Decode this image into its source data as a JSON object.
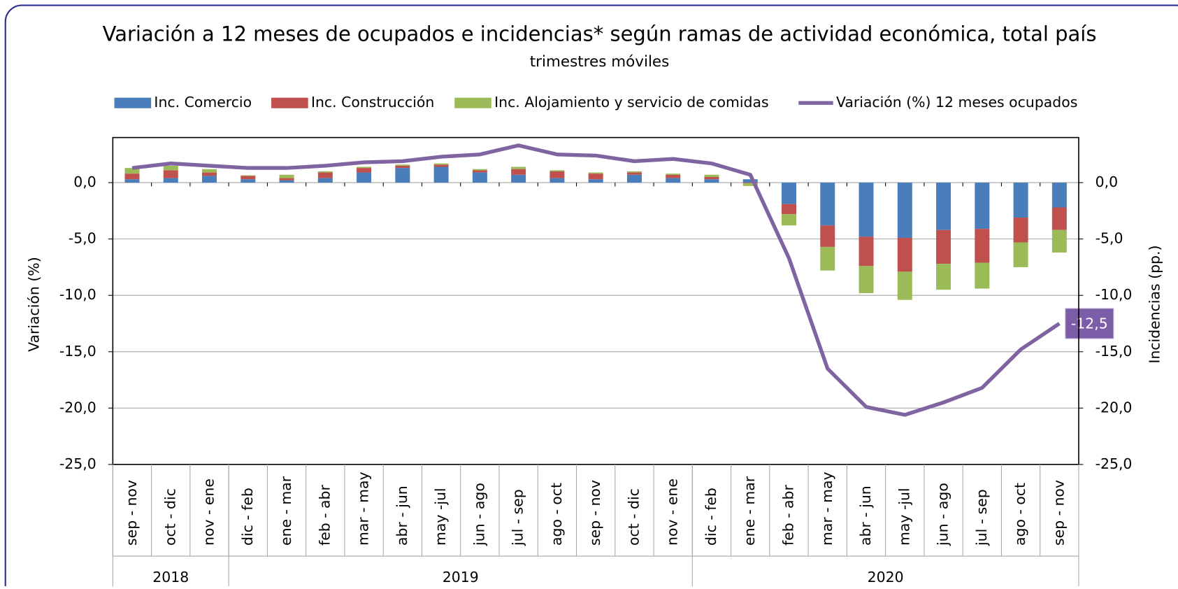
{
  "chart_data": {
    "type": "bar-line",
    "title": "Variación a 12 meses de ocupados e incidencias* según ramas de actividad económica, total país",
    "subtitle": "trimestres móviles",
    "ylabel": "Variación (%)",
    "y2label": "Incidencias (pp.)",
    "categories": [
      "sep - nov",
      "oct - dic",
      "nov - ene",
      "dic - feb",
      "ene - mar",
      "feb - abr",
      "mar - may",
      "abr - jun",
      "may -jul",
      "jun - ago",
      "jul - sep",
      "ago - oct",
      "sep - nov",
      "oct - dic",
      "nov - ene",
      "dic - feb",
      "ene - mar",
      "feb - abr",
      "mar - may",
      "abr - jun",
      "may -jul",
      "jun - ago",
      "jul - sep",
      "ago - oct",
      "sep - nov"
    ],
    "year_groups": [
      {
        "label": "2018",
        "span": 3
      },
      {
        "label": "2019",
        "span": 12
      },
      {
        "label": "2020",
        "span": 10
      }
    ],
    "series": [
      {
        "name": "Inc. Comercio",
        "type": "bar",
        "axis": "y2",
        "color": "#4a7ebb",
        "values": [
          0.3,
          0.4,
          0.6,
          0.3,
          0.2,
          0.4,
          0.9,
          1.3,
          1.4,
          0.9,
          0.7,
          0.4,
          0.3,
          0.7,
          0.4,
          0.3,
          0.3,
          -1.9,
          -3.8,
          -4.8,
          -4.9,
          -4.2,
          -4.1,
          -3.1,
          -2.2
        ]
      },
      {
        "name": "Inc. Construcción",
        "type": "bar",
        "axis": "y2",
        "color": "#c0504d",
        "values": [
          0.5,
          0.7,
          0.3,
          0.3,
          0.2,
          0.5,
          0.4,
          0.2,
          0.2,
          0.2,
          0.5,
          0.6,
          0.5,
          0.2,
          0.3,
          0.2,
          -0.05,
          -0.9,
          -1.9,
          -2.6,
          -3.0,
          -3.0,
          -3.0,
          -2.2,
          -2.0
        ]
      },
      {
        "name": "Inc. Alojamiento y servicio de comidas",
        "type": "bar",
        "axis": "y2",
        "color": "#9bbb59",
        "values": [
          0.5,
          0.4,
          0.3,
          0.05,
          0.3,
          0.1,
          0.1,
          0.1,
          0.1,
          0.1,
          0.2,
          0.1,
          0.1,
          0.1,
          0.1,
          0.2,
          -0.25,
          -1.0,
          -2.1,
          -2.4,
          -2.5,
          -2.3,
          -2.3,
          -2.2,
          -2.0
        ]
      },
      {
        "name": "Variación (%) 12 meses ocupados",
        "type": "line",
        "axis": "y",
        "color": "#8064a2",
        "values": [
          1.3,
          1.7,
          1.5,
          1.3,
          1.3,
          1.5,
          1.8,
          1.9,
          2.3,
          2.5,
          3.3,
          2.5,
          2.4,
          1.9,
          2.1,
          1.7,
          0.7,
          -6.7,
          -16.5,
          -19.9,
          -20.6,
          -19.5,
          -18.2,
          -14.8,
          -12.5
        ],
        "value_labels": [
          null,
          null,
          null,
          null,
          null,
          null,
          null,
          null,
          null,
          null,
          null,
          null,
          null,
          null,
          null,
          null,
          null,
          null,
          null,
          null,
          null,
          null,
          null,
          null,
          "-12,5"
        ]
      }
    ],
    "ylim": [
      -25,
      4
    ],
    "yticks": [
      {
        "value": 0,
        "label": "0,0"
      },
      {
        "value": -5,
        "label": "-5,0"
      },
      {
        "value": -10,
        "label": "-10,0"
      },
      {
        "value": -15,
        "label": "-15,0"
      },
      {
        "value": -20,
        "label": "-20,0"
      },
      {
        "value": -25,
        "label": "-25,0"
      }
    ],
    "y2lim": [
      -25,
      4
    ],
    "y2ticks": [
      {
        "value": 0,
        "label": "0,0"
      },
      {
        "value": -5,
        "label": "-5,0"
      },
      {
        "value": -10,
        "label": "-10,0"
      },
      {
        "value": -15,
        "label": "-15,0"
      },
      {
        "value": -20,
        "label": "-20,0"
      },
      {
        "value": -25,
        "label": "-25,0"
      }
    ],
    "grid": true,
    "legend": "top"
  }
}
